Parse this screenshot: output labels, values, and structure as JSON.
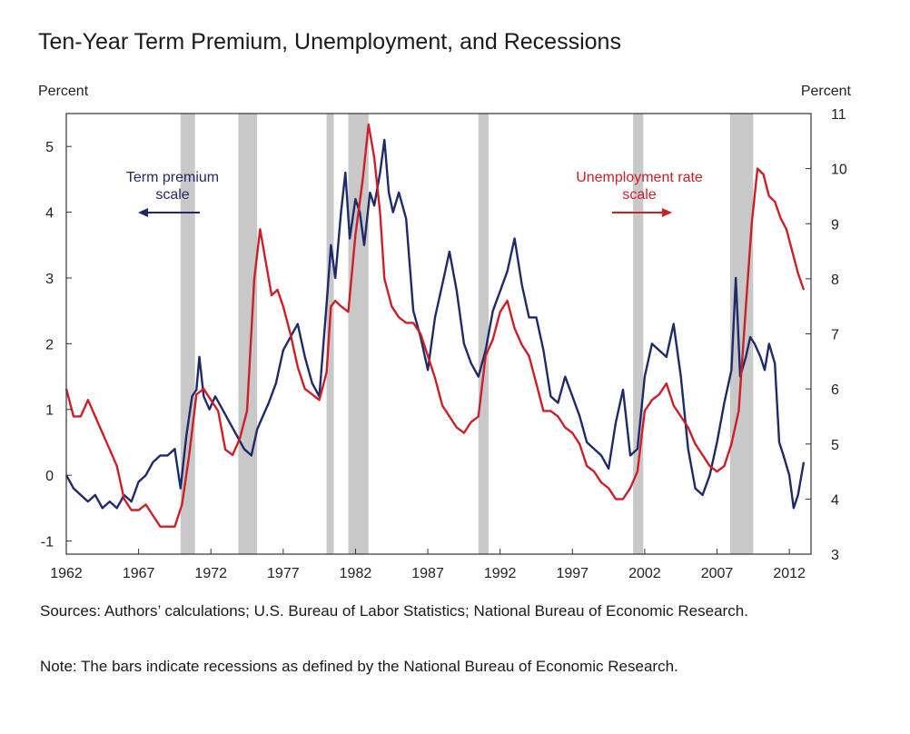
{
  "chart_data": {
    "type": "line",
    "title": "Ten-Year Term Premium, Unemployment, and Recessions",
    "y_left_label": "Percent",
    "y_right_label": "Percent",
    "x_range": [
      1962,
      2013.5
    ],
    "y_left_range": [
      -1.2,
      5.5
    ],
    "y_right_range": [
      3,
      11
    ],
    "x_ticks": [
      "1962",
      "1967",
      "1972",
      "1977",
      "1982",
      "1987",
      "1992",
      "1997",
      "2002",
      "2007",
      "2012"
    ],
    "x_tick_values": [
      1962,
      1967,
      1972,
      1977,
      1982,
      1987,
      1992,
      1997,
      2002,
      2007,
      2012
    ],
    "y_left_ticks": [
      "-1",
      "0",
      "1",
      "2",
      "3",
      "4",
      "5"
    ],
    "y_right_ticks": [
      "3",
      "4",
      "5",
      "6",
      "7",
      "8",
      "9",
      "10",
      "11"
    ],
    "recessions": [
      [
        1969.9,
        1970.9
      ],
      [
        1973.9,
        1975.2
      ],
      [
        1980.0,
        1980.5
      ],
      [
        1981.5,
        1982.9
      ],
      [
        1990.5,
        1991.2
      ],
      [
        2001.2,
        2001.9
      ],
      [
        2007.9,
        2009.5
      ]
    ],
    "series": [
      {
        "name": "Term premium",
        "axis": "left",
        "color": "#1f2a6b",
        "x": [
          1962.0,
          1962.5,
          1963.0,
          1963.5,
          1964.0,
          1964.5,
          1965.0,
          1965.5,
          1966.0,
          1966.5,
          1967.0,
          1967.5,
          1968.0,
          1968.5,
          1969.0,
          1969.5,
          1969.9,
          1970.3,
          1970.7,
          1971.0,
          1971.2,
          1971.5,
          1971.9,
          1972.3,
          1972.8,
          1973.3,
          1973.8,
          1974.3,
          1974.8,
          1975.2,
          1975.6,
          1976.0,
          1976.5,
          1977.0,
          1977.5,
          1978.0,
          1978.5,
          1979.0,
          1979.5,
          1980.0,
          1980.3,
          1980.6,
          1981.0,
          1981.3,
          1981.6,
          1982.0,
          1982.3,
          1982.6,
          1983.0,
          1983.3,
          1983.7,
          1984.0,
          1984.3,
          1984.6,
          1985.0,
          1985.5,
          1986.0,
          1986.5,
          1987.0,
          1987.5,
          1988.0,
          1988.5,
          1989.0,
          1989.5,
          1990.0,
          1990.5,
          1991.0,
          1991.5,
          1992.0,
          1992.5,
          1993.0,
          1993.5,
          1994.0,
          1994.5,
          1995.0,
          1995.5,
          1996.0,
          1996.5,
          1997.0,
          1997.5,
          1998.0,
          1998.5,
          1999.0,
          1999.5,
          2000.0,
          2000.5,
          2001.0,
          2001.5,
          2002.0,
          2002.5,
          2003.0,
          2003.5,
          2004.0,
          2004.5,
          2005.0,
          2005.5,
          2006.0,
          2006.5,
          2007.0,
          2007.5,
          2008.0,
          2008.3,
          2008.6,
          2009.0,
          2009.3,
          2009.6,
          2010.0,
          2010.3,
          2010.6,
          2011.0,
          2011.3,
          2011.6,
          2012.0,
          2012.3,
          2012.6,
          2013.0
        ],
        "values": [
          0.0,
          -0.2,
          -0.3,
          -0.4,
          -0.3,
          -0.5,
          -0.4,
          -0.5,
          -0.3,
          -0.4,
          -0.1,
          0.0,
          0.2,
          0.3,
          0.3,
          0.4,
          -0.2,
          0.6,
          1.2,
          1.3,
          1.8,
          1.2,
          1.0,
          1.2,
          1.0,
          0.8,
          0.6,
          0.4,
          0.3,
          0.7,
          0.9,
          1.1,
          1.4,
          1.9,
          2.1,
          2.3,
          1.8,
          1.4,
          1.2,
          2.6,
          3.5,
          3.0,
          4.0,
          4.6,
          3.6,
          4.2,
          4.0,
          3.5,
          4.3,
          4.1,
          4.6,
          5.1,
          4.3,
          4.0,
          4.3,
          3.9,
          2.5,
          2.1,
          1.6,
          2.4,
          2.9,
          3.4,
          2.8,
          2.0,
          1.7,
          1.5,
          1.9,
          2.5,
          2.8,
          3.1,
          3.6,
          2.9,
          2.4,
          2.4,
          1.9,
          1.2,
          1.1,
          1.5,
          1.2,
          0.9,
          0.5,
          0.4,
          0.3,
          0.1,
          0.8,
          1.3,
          0.3,
          0.4,
          1.5,
          2.0,
          1.9,
          1.8,
          2.3,
          1.5,
          0.4,
          -0.2,
          -0.3,
          0.0,
          0.5,
          1.1,
          1.6,
          3.0,
          1.5,
          1.8,
          2.1,
          2.0,
          1.8,
          1.6,
          2.0,
          1.7,
          0.5,
          0.3,
          0.0,
          -0.5,
          -0.3,
          0.2
        ]
      },
      {
        "name": "Unemployment rate",
        "axis": "right",
        "color": "#cc2027",
        "x": [
          1962.0,
          1962.5,
          1963.0,
          1963.5,
          1964.0,
          1964.5,
          1965.0,
          1965.5,
          1966.0,
          1966.5,
          1967.0,
          1967.5,
          1968.0,
          1968.5,
          1969.0,
          1969.5,
          1970.0,
          1970.5,
          1971.0,
          1971.5,
          1972.0,
          1972.5,
          1973.0,
          1973.5,
          1974.0,
          1974.5,
          1975.0,
          1975.4,
          1975.8,
          1976.2,
          1976.6,
          1977.0,
          1977.5,
          1978.0,
          1978.5,
          1979.0,
          1979.5,
          1980.0,
          1980.3,
          1980.6,
          1981.0,
          1981.5,
          1982.0,
          1982.5,
          1982.9,
          1983.3,
          1983.7,
          1984.0,
          1984.5,
          1985.0,
          1985.5,
          1986.0,
          1986.5,
          1987.0,
          1987.5,
          1988.0,
          1988.5,
          1989.0,
          1989.5,
          1990.0,
          1990.5,
          1991.0,
          1991.5,
          1992.0,
          1992.5,
          1993.0,
          1993.5,
          1994.0,
          1994.5,
          1995.0,
          1995.5,
          1996.0,
          1996.5,
          1997.0,
          1997.5,
          1998.0,
          1998.5,
          1999.0,
          1999.5,
          2000.0,
          2000.5,
          2001.0,
          2001.5,
          2002.0,
          2002.5,
          2003.0,
          2003.5,
          2004.0,
          2004.5,
          2005.0,
          2005.5,
          2006.0,
          2006.5,
          2007.0,
          2007.5,
          2008.0,
          2008.5,
          2009.0,
          2009.4,
          2009.8,
          2010.2,
          2010.6,
          2011.0,
          2011.4,
          2011.8,
          2012.2,
          2012.6,
          2013.0
        ],
        "values": [
          6.0,
          5.5,
          5.5,
          5.8,
          5.5,
          5.2,
          4.9,
          4.6,
          4.0,
          3.8,
          3.8,
          3.9,
          3.7,
          3.5,
          3.5,
          3.5,
          3.9,
          4.8,
          5.9,
          6.0,
          5.8,
          5.6,
          4.9,
          4.8,
          5.1,
          5.6,
          8.0,
          8.9,
          8.3,
          7.7,
          7.8,
          7.5,
          7.0,
          6.4,
          6.0,
          5.9,
          5.8,
          6.3,
          7.5,
          7.6,
          7.5,
          7.4,
          8.8,
          9.8,
          10.8,
          10.2,
          9.2,
          8.0,
          7.5,
          7.3,
          7.2,
          7.2,
          7.0,
          6.6,
          6.2,
          5.7,
          5.5,
          5.3,
          5.2,
          5.4,
          5.5,
          6.6,
          6.9,
          7.4,
          7.6,
          7.1,
          6.8,
          6.6,
          6.1,
          5.6,
          5.6,
          5.5,
          5.3,
          5.2,
          5.0,
          4.6,
          4.5,
          4.3,
          4.2,
          4.0,
          4.0,
          4.2,
          4.5,
          5.6,
          5.8,
          5.9,
          6.1,
          5.7,
          5.5,
          5.3,
          5.0,
          4.8,
          4.6,
          4.5,
          4.6,
          5.0,
          5.6,
          7.5,
          9.0,
          10.0,
          9.9,
          9.5,
          9.4,
          9.1,
          8.9,
          8.5,
          8.1,
          7.8
        ]
      }
    ],
    "annotations": {
      "term_premium": [
        "Term premium",
        "scale"
      ],
      "unemployment": [
        "Unemployment rate",
        "scale"
      ]
    }
  },
  "footer": {
    "sources": "Sources: Authors’ calculations; U.S. Bureau of Labor Statistics; National Bureau of Economic Research.",
    "note": "Note: The bars indicate recessions as defined by the National Bureau of Economic Research."
  }
}
